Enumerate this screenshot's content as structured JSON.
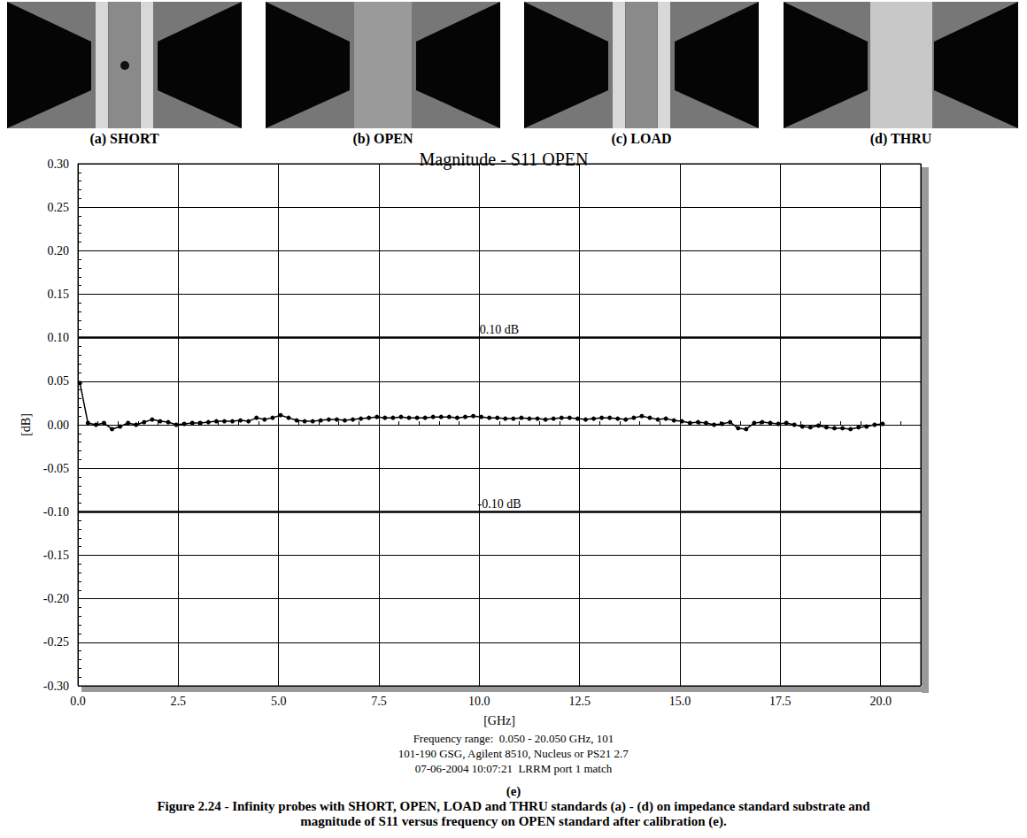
{
  "panels": [
    {
      "label": "(a) SHORT"
    },
    {
      "label": "(b) OPEN"
    },
    {
      "label": "(c) LOAD"
    },
    {
      "label": "(d) THRU"
    }
  ],
  "chart_data": {
    "type": "line",
    "title": "Magnitude - S11 OPEN",
    "x_label": "[GHz]",
    "y_label": "[dB]",
    "x": [
      0.05,
      0.25,
      0.45,
      0.65,
      0.85,
      1.05,
      1.25,
      1.45,
      1.65,
      1.85,
      2.05,
      2.25,
      2.45,
      2.65,
      2.85,
      3.05,
      3.25,
      3.45,
      3.65,
      3.85,
      4.05,
      4.25,
      4.45,
      4.65,
      4.85,
      5.05,
      5.25,
      5.45,
      5.65,
      5.85,
      6.05,
      6.25,
      6.45,
      6.65,
      6.85,
      7.05,
      7.25,
      7.45,
      7.65,
      7.85,
      8.05,
      8.25,
      8.45,
      8.65,
      8.85,
      9.05,
      9.25,
      9.45,
      9.65,
      9.85,
      10.05,
      10.25,
      10.45,
      10.65,
      10.85,
      11.05,
      11.25,
      11.45,
      11.65,
      11.85,
      12.05,
      12.25,
      12.45,
      12.65,
      12.85,
      13.05,
      13.25,
      13.45,
      13.65,
      13.85,
      14.05,
      14.25,
      14.45,
      14.65,
      14.85,
      15.05,
      15.25,
      15.45,
      15.65,
      15.85,
      16.05,
      16.25,
      16.45,
      16.65,
      16.85,
      17.05,
      17.25,
      17.45,
      17.65,
      17.85,
      18.05,
      18.25,
      18.45,
      18.65,
      18.85,
      19.05,
      19.25,
      19.45,
      19.65,
      19.85,
      20.05
    ],
    "values": [
      0.048,
      0.002,
      0.0,
      0.002,
      -0.005,
      -0.002,
      0.002,
      0.0,
      0.003,
      0.006,
      0.004,
      0.003,
      0.0,
      0.001,
      0.002,
      0.002,
      0.003,
      0.004,
      0.004,
      0.004,
      0.005,
      0.004,
      0.008,
      0.006,
      0.008,
      0.011,
      0.008,
      0.005,
      0.004,
      0.004,
      0.005,
      0.006,
      0.006,
      0.005,
      0.006,
      0.007,
      0.008,
      0.009,
      0.008,
      0.008,
      0.009,
      0.008,
      0.008,
      0.008,
      0.009,
      0.009,
      0.009,
      0.008,
      0.009,
      0.01,
      0.009,
      0.008,
      0.008,
      0.007,
      0.007,
      0.008,
      0.007,
      0.007,
      0.006,
      0.007,
      0.008,
      0.008,
      0.007,
      0.006,
      0.007,
      0.008,
      0.008,
      0.007,
      0.006,
      0.008,
      0.01,
      0.008,
      0.006,
      0.007,
      0.005,
      0.004,
      0.002,
      0.003,
      0.002,
      0.0,
      0.001,
      0.003,
      -0.004,
      -0.005,
      0.002,
      0.003,
      0.002,
      0.001,
      0.002,
      0.0,
      -0.002,
      -0.003,
      -0.001,
      -0.003,
      -0.004,
      -0.004,
      -0.005,
      -0.003,
      -0.002,
      0.0,
      0.001
    ],
    "color": "#000000",
    "marker": "circle",
    "line_style": "solid",
    "grid": true,
    "xlim": [
      0,
      21
    ],
    "xticks": [
      {
        "value": 0,
        "label": "0.0"
      },
      {
        "value": 2.5,
        "label": "2.5"
      },
      {
        "value": 5,
        "label": "5.0"
      },
      {
        "value": 7.5,
        "label": "7.5"
      },
      {
        "value": 10,
        "label": "10.0"
      },
      {
        "value": 12.5,
        "label": "12.5"
      },
      {
        "value": 15,
        "label": "15.0"
      },
      {
        "value": 17.5,
        "label": "17.5"
      },
      {
        "value": 20,
        "label": "20.0"
      }
    ],
    "ylim": [
      -0.3,
      0.3
    ],
    "yticks": [
      {
        "value": -0.3,
        "label": "-0.30"
      },
      {
        "value": -0.25,
        "label": "-0.25"
      },
      {
        "value": -0.2,
        "label": "-0.20"
      },
      {
        "value": -0.15,
        "label": "-0.15"
      },
      {
        "value": -0.1,
        "label": "-0.10"
      },
      {
        "value": -0.05,
        "label": "-0.05"
      },
      {
        "value": 0,
        "label": "0.00"
      },
      {
        "value": 0.05,
        "label": "0.05"
      },
      {
        "value": 0.1,
        "label": "0.10"
      },
      {
        "value": 0.15,
        "label": "0.15"
      },
      {
        "value": 0.2,
        "label": "0.20"
      },
      {
        "value": 0.25,
        "label": "0.25"
      },
      {
        "value": 0.3,
        "label": "0.30"
      }
    ],
    "reference_lines": [
      {
        "value": 0.1,
        "label": "0.10 dB"
      },
      {
        "value": -0.1,
        "label": "-0.10 dB"
      }
    ],
    "notes": [
      "Frequency range:  0.050 - 20.050 GHz, 101",
      "101-190 GSG, Agilent 8510, Nucleus or PS21 2.7",
      "07-06-2004 10:07:21  LRRM port 1 match"
    ]
  },
  "figure_label": "(e)",
  "caption": "Figure 2.24 - Infinity probes with SHORT, OPEN, LOAD and THRU standards (a) - (d) on impedance standard substrate and magnitude of S11 versus frequency on OPEN standard after calibration (e)."
}
